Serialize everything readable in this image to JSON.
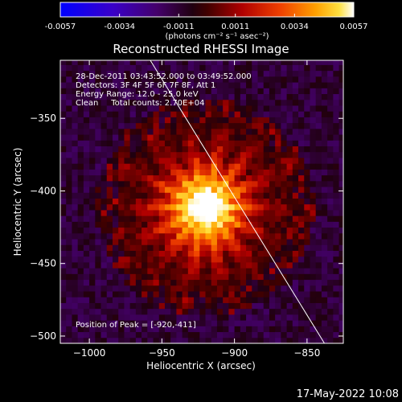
{
  "colorbar": {
    "ticks": [
      "-0.0057",
      "-0.0034",
      "-0.0011",
      "0.0011",
      "0.0034",
      "0.0057"
    ],
    "unit_label": "(photons cm⁻² s⁻¹ asec⁻²)",
    "range": [
      -0.0057,
      0.0057
    ]
  },
  "chart_data": {
    "type": "heatmap",
    "title": "Reconstructed RHESSI Image",
    "xlabel": "Heliocentric X (arcsec)",
    "ylabel": "Heliocentric Y (arcsec)",
    "xlim": [
      -1020,
      -825
    ],
    "ylim": [
      -505,
      -310
    ],
    "x_ticks": [
      -1000,
      -950,
      -900,
      -850
    ],
    "y_ticks": [
      -350,
      -400,
      -450,
      -500
    ],
    "x_tick_labels": [
      "−1000",
      "−950",
      "−900",
      "−850"
    ],
    "y_tick_labels": [
      "−350",
      "−400",
      "−450",
      "−500"
    ],
    "peak": [
      -920,
      -411
    ],
    "limb_line": [
      [
        -958,
        -310
      ],
      [
        -838,
        -505
      ]
    ],
    "colormap": "sunset (blue-purple-red-orange-yellow-white)",
    "grid": false,
    "legend": "none"
  },
  "annotations": {
    "time": "28-Dec-2011 03:43:52.000 to 03:49:52.000",
    "detectors": "Detectors: 3F 4F 5F 6F 7F 8F, Att 1",
    "energy": "Energy Range: 12.0 - 25.0 keV",
    "clean": "Clean     Total counts: 2.70E+04",
    "peak_text": "Position of Peak = [-920,-411]"
  },
  "footer": {
    "timestamp": "17-May-2022 10:08"
  },
  "colors": {
    "background": "#000000",
    "text": "#ffffff",
    "axis": "#ffffff"
  }
}
